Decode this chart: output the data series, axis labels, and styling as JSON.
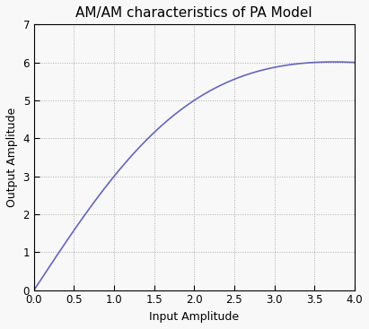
{
  "title": "AM/AM characteristics of PA Model",
  "xlabel": "Input Amplitude",
  "ylabel": "Output Amplitude",
  "xlim": [
    0,
    4
  ],
  "ylim": [
    0,
    7
  ],
  "xticks": [
    0,
    0.5,
    1,
    1.5,
    2,
    2.5,
    3,
    3.5,
    4
  ],
  "yticks": [
    0,
    1,
    2,
    3,
    4,
    5,
    6,
    7
  ],
  "line_color": "#6666bb",
  "line_width": 1.2,
  "alpha_a": 3.2143,
  "beta_a": 0.07143,
  "n_points": 2000,
  "grid_color": "#aaaaaa",
  "grid_linestyle": ":",
  "background_color": "#f8f8f8",
  "title_fontsize": 11,
  "label_fontsize": 9,
  "tick_fontsize": 8.5
}
